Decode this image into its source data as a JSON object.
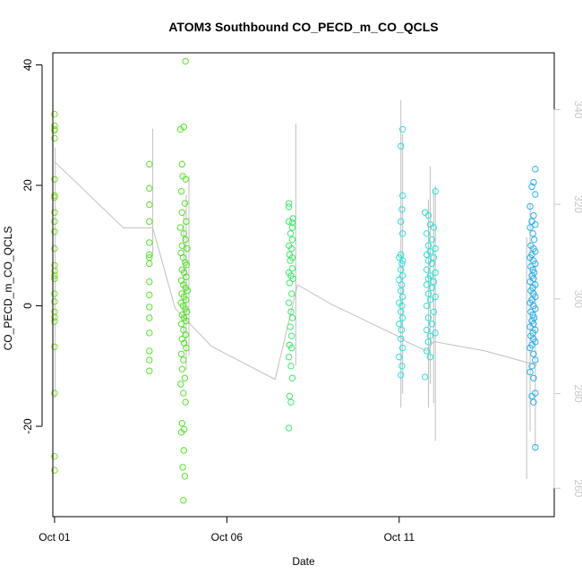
{
  "chart_data": {
    "type": "scatter",
    "title": "ATOM3 Southbound CO_PECD_m_CO_QCLS",
    "xlabel": "Date",
    "ylabel": "CO_PECD_m_CO_QCLS",
    "x_ticks": [
      "Oct 01",
      "Oct 06",
      "Oct 11"
    ],
    "x_tick_days": [
      1,
      6,
      11
    ],
    "xlim": [
      0.95,
      15.5
    ],
    "y_ticks": [
      -20,
      0,
      20,
      40
    ],
    "ylim": [
      -35,
      42
    ],
    "y2_ticks": [
      260,
      280,
      300,
      320,
      340
    ],
    "y2lim": [
      254,
      352
    ],
    "colors": {
      "axis": "#000000",
      "secondary_axis": "#c8c8c8",
      "line": "#c0c0c0"
    },
    "secondary_line": [
      [
        1.0,
        329
      ],
      [
        2.0,
        322
      ],
      [
        3.0,
        315
      ],
      [
        3.85,
        315
      ],
      [
        4.5,
        298
      ],
      [
        5.55,
        290
      ],
      [
        5.55,
        290
      ],
      [
        7.4,
        283
      ],
      [
        8.05,
        303
      ],
      [
        9.0,
        299
      ],
      [
        11.0,
        292
      ],
      [
        11.2,
        291
      ],
      [
        11.8,
        289
      ],
      [
        12.0,
        291
      ],
      [
        13.5,
        289
      ],
      [
        15.0,
        286
      ]
    ],
    "secondary_spikes": [
      {
        "x": 1.02,
        "y0": 279,
        "y1": 332
      },
      {
        "x": 3.85,
        "y0": 309,
        "y1": 336
      },
      {
        "x": 4.75,
        "y0": 292,
        "y1": 318
      },
      {
        "x": 4.82,
        "y0": 285,
        "y1": 322
      },
      {
        "x": 4.9,
        "y0": 288,
        "y1": 326
      },
      {
        "x": 8.0,
        "y0": 286,
        "y1": 337
      },
      {
        "x": 11.05,
        "y0": 277,
        "y1": 342
      },
      {
        "x": 11.1,
        "y0": 280,
        "y1": 335
      },
      {
        "x": 11.85,
        "y0": 277,
        "y1": 321
      },
      {
        "x": 11.9,
        "y0": 282,
        "y1": 328
      },
      {
        "x": 12.0,
        "y0": 278,
        "y1": 323
      },
      {
        "x": 12.05,
        "y0": 270,
        "y1": 324
      },
      {
        "x": 14.7,
        "y0": 262,
        "y1": 313
      },
      {
        "x": 14.8,
        "y0": 272,
        "y1": 320
      },
      {
        "x": 14.95,
        "y0": 268,
        "y1": 308
      }
    ],
    "series": [
      {
        "color": "#7bdc2a",
        "points": [
          [
            1.0,
            31.8
          ],
          [
            1.0,
            29.9
          ],
          [
            1.0,
            29.3
          ],
          [
            1.0,
            29.1
          ],
          [
            1.0,
            27.8
          ],
          [
            1.0,
            21.0
          ],
          [
            1.0,
            18.3
          ],
          [
            1.0,
            18.0
          ],
          [
            1.0,
            15.5
          ],
          [
            1.0,
            14.0
          ],
          [
            1.0,
            12.3
          ],
          [
            1.0,
            9.5
          ],
          [
            1.0,
            6.7
          ],
          [
            1.0,
            5.8
          ],
          [
            1.0,
            5.0
          ],
          [
            1.0,
            4.5
          ],
          [
            1.0,
            2.0
          ],
          [
            1.0,
            0.7
          ],
          [
            1.0,
            -1.0
          ],
          [
            1.0,
            -1.9
          ],
          [
            1.0,
            -2.6
          ],
          [
            1.0,
            -6.8
          ],
          [
            1.0,
            -14.5
          ],
          [
            1.0,
            -25.0
          ],
          [
            1.0,
            -27.3
          ]
        ]
      },
      {
        "color": "#55e22a",
        "points": [
          [
            3.75,
            23.5
          ],
          [
            3.75,
            19.5
          ],
          [
            3.75,
            16.8
          ],
          [
            3.75,
            14.0
          ],
          [
            3.75,
            10.5
          ],
          [
            3.75,
            8.5
          ],
          [
            3.75,
            8.0
          ],
          [
            3.75,
            7.0
          ],
          [
            3.75,
            4.0
          ],
          [
            3.75,
            1.8
          ],
          [
            3.75,
            -0.2
          ],
          [
            3.75,
            -2.0
          ],
          [
            3.75,
            -4.5
          ],
          [
            3.75,
            -7.5
          ],
          [
            3.75,
            -9.0
          ],
          [
            3.75,
            -10.8
          ],
          [
            4.65,
            29.3
          ],
          [
            4.75,
            29.7
          ],
          [
            4.7,
            23.5
          ],
          [
            4.72,
            21.5
          ],
          [
            4.8,
            21.0
          ],
          [
            4.68,
            19.0
          ],
          [
            4.78,
            17.0
          ],
          [
            4.7,
            15.5
          ],
          [
            4.82,
            14.0
          ],
          [
            4.65,
            13.0
          ],
          [
            4.75,
            12.0
          ],
          [
            4.8,
            11.0
          ],
          [
            4.7,
            10.0
          ],
          [
            4.85,
            9.5
          ],
          [
            4.67,
            8.8
          ],
          [
            4.73,
            8.0
          ],
          [
            4.79,
            7.2
          ],
          [
            4.83,
            6.8
          ],
          [
            4.7,
            6.0
          ],
          [
            4.76,
            5.5
          ],
          [
            4.82,
            4.8
          ],
          [
            4.68,
            4.2
          ],
          [
            4.74,
            3.5
          ],
          [
            4.8,
            3.0
          ],
          [
            4.86,
            2.5
          ],
          [
            4.69,
            2.0
          ],
          [
            4.75,
            1.5
          ],
          [
            4.81,
            1.0
          ],
          [
            4.67,
            0.5
          ],
          [
            4.73,
            0.0
          ],
          [
            4.79,
            -0.5
          ],
          [
            4.84,
            -1.0
          ],
          [
            4.7,
            -1.5
          ],
          [
            4.76,
            -2.0
          ],
          [
            4.82,
            -2.5
          ],
          [
            4.68,
            -3.0
          ],
          [
            4.74,
            -4.0
          ],
          [
            4.8,
            -4.8
          ],
          [
            4.7,
            -5.5
          ],
          [
            4.76,
            -6.2
          ],
          [
            4.82,
            -7.0
          ],
          [
            4.68,
            -8.0
          ],
          [
            4.74,
            -9.0
          ],
          [
            4.7,
            -10.5
          ],
          [
            4.78,
            -12.0
          ],
          [
            4.66,
            -13.0
          ],
          [
            4.74,
            -14.5
          ],
          [
            4.8,
            -16.0
          ],
          [
            4.7,
            -19.5
          ],
          [
            4.76,
            -20.5
          ],
          [
            4.68,
            -21.0
          ],
          [
            4.75,
            -24.0
          ],
          [
            4.72,
            -26.8
          ],
          [
            4.78,
            -28.3
          ],
          [
            4.74,
            -32.3
          ],
          [
            4.8,
            40.6
          ]
        ]
      },
      {
        "color": "#3ee86a",
        "points": [
          [
            7.8,
            17.0
          ],
          [
            7.8,
            16.4
          ],
          [
            7.8,
            14.0
          ],
          [
            7.9,
            13.8
          ],
          [
            7.85,
            12.0
          ],
          [
            7.9,
            11.0
          ],
          [
            7.8,
            10.0
          ],
          [
            7.88,
            9.5
          ],
          [
            7.82,
            8.5
          ],
          [
            7.9,
            8.0
          ],
          [
            7.84,
            7.5
          ],
          [
            7.9,
            6.2
          ],
          [
            7.8,
            5.5
          ],
          [
            7.86,
            5.0
          ],
          [
            7.92,
            4.5
          ],
          [
            7.82,
            3.8
          ],
          [
            7.88,
            2.0
          ],
          [
            7.8,
            0.5
          ],
          [
            7.86,
            -1.0
          ],
          [
            7.9,
            -2.0
          ],
          [
            7.84,
            -3.5
          ],
          [
            7.88,
            -5.0
          ],
          [
            7.82,
            -6.5
          ],
          [
            7.88,
            -7.0
          ],
          [
            7.8,
            -8.5
          ],
          [
            7.86,
            -10.0
          ],
          [
            7.9,
            -12.0
          ],
          [
            7.82,
            -15.0
          ],
          [
            7.86,
            -16.0
          ],
          [
            7.8,
            -20.3
          ],
          [
            7.9,
            13.0
          ],
          [
            7.92,
            14.5
          ]
        ]
      },
      {
        "color": "#2ee0d8",
        "points": [
          [
            11.1,
            29.3
          ],
          [
            11.05,
            26.5
          ],
          [
            11.1,
            18.3
          ],
          [
            11.08,
            16.0
          ],
          [
            11.05,
            14.0
          ],
          [
            11.1,
            12.0
          ],
          [
            11.05,
            8.5
          ],
          [
            11.0,
            8.0
          ],
          [
            11.1,
            7.5
          ],
          [
            11.08,
            7.0
          ],
          [
            11.05,
            6.0
          ],
          [
            11.1,
            5.0
          ],
          [
            11.0,
            4.3
          ],
          [
            11.07,
            3.5
          ],
          [
            11.05,
            2.5
          ],
          [
            11.1,
            1.5
          ],
          [
            11.0,
            0.5
          ],
          [
            11.08,
            0.0
          ],
          [
            11.05,
            -1.0
          ],
          [
            11.1,
            -2.0
          ],
          [
            11.0,
            -3.0
          ],
          [
            11.07,
            -4.0
          ],
          [
            11.05,
            -5.5
          ],
          [
            11.1,
            -7.0
          ],
          [
            11.0,
            -8.5
          ],
          [
            11.08,
            -10.0
          ],
          [
            11.05,
            -11.5
          ],
          [
            11.75,
            15.5
          ],
          [
            11.85,
            15.0
          ],
          [
            11.9,
            13.5
          ],
          [
            12.0,
            13.0
          ],
          [
            11.8,
            12.0
          ],
          [
            11.95,
            11.0
          ],
          [
            11.85,
            10.0
          ],
          [
            12.05,
            9.5
          ],
          [
            11.9,
            9.0
          ],
          [
            11.8,
            8.5
          ],
          [
            12.0,
            8.0
          ],
          [
            11.85,
            7.5
          ],
          [
            11.95,
            7.0
          ],
          [
            11.8,
            6.0
          ],
          [
            12.05,
            5.5
          ],
          [
            11.9,
            5.0
          ],
          [
            11.85,
            4.5
          ],
          [
            12.0,
            4.0
          ],
          [
            11.8,
            3.5
          ],
          [
            11.95,
            3.0
          ],
          [
            11.85,
            2.0
          ],
          [
            12.05,
            1.5
          ],
          [
            11.9,
            1.0
          ],
          [
            11.8,
            0.0
          ],
          [
            12.0,
            -1.0
          ],
          [
            11.85,
            -2.0
          ],
          [
            11.95,
            -3.0
          ],
          [
            11.8,
            -4.0
          ],
          [
            12.05,
            -4.5
          ],
          [
            11.9,
            -5.0
          ],
          [
            11.85,
            -6.0
          ],
          [
            11.8,
            -7.5
          ],
          [
            11.9,
            -8.5
          ],
          [
            11.75,
            -11.8
          ],
          [
            12.05,
            19.0
          ]
        ]
      },
      {
        "color": "#2ab0ec",
        "points": [
          [
            14.95,
            22.7
          ],
          [
            14.9,
            20.5
          ],
          [
            14.85,
            19.8
          ],
          [
            14.95,
            18.5
          ],
          [
            14.8,
            16.5
          ],
          [
            14.9,
            15.0
          ],
          [
            14.85,
            14.0
          ],
          [
            14.95,
            13.5
          ],
          [
            14.8,
            13.0
          ],
          [
            14.88,
            12.0
          ],
          [
            14.92,
            11.0
          ],
          [
            14.82,
            10.0
          ],
          [
            14.9,
            9.5
          ],
          [
            14.95,
            9.0
          ],
          [
            14.85,
            8.5
          ],
          [
            14.8,
            8.0
          ],
          [
            14.9,
            7.5
          ],
          [
            14.95,
            7.0
          ],
          [
            14.82,
            6.5
          ],
          [
            14.88,
            6.0
          ],
          [
            14.92,
            5.5
          ],
          [
            14.85,
            5.0
          ],
          [
            14.9,
            4.5
          ],
          [
            14.8,
            4.0
          ],
          [
            14.95,
            3.5
          ],
          [
            14.88,
            3.0
          ],
          [
            14.82,
            2.5
          ],
          [
            14.9,
            2.0
          ],
          [
            14.95,
            1.5
          ],
          [
            14.85,
            1.0
          ],
          [
            14.8,
            0.5
          ],
          [
            14.9,
            0.0
          ],
          [
            14.95,
            -0.5
          ],
          [
            14.82,
            -1.0
          ],
          [
            14.88,
            -1.5
          ],
          [
            14.92,
            -2.0
          ],
          [
            14.85,
            -2.5
          ],
          [
            14.9,
            -3.0
          ],
          [
            14.8,
            -3.5
          ],
          [
            14.95,
            -4.0
          ],
          [
            14.88,
            -4.5
          ],
          [
            14.82,
            -5.0
          ],
          [
            14.9,
            -5.5
          ],
          [
            14.95,
            -6.0
          ],
          [
            14.85,
            -6.5
          ],
          [
            14.8,
            -7.0
          ],
          [
            14.9,
            -8.0
          ],
          [
            14.95,
            -9.0
          ],
          [
            14.85,
            -10.0
          ],
          [
            14.8,
            -11.0
          ],
          [
            14.9,
            -12.0
          ],
          [
            14.95,
            -14.5
          ],
          [
            14.85,
            -15.0
          ],
          [
            14.9,
            -16.0
          ],
          [
            14.95,
            -23.5
          ]
        ]
      }
    ]
  }
}
